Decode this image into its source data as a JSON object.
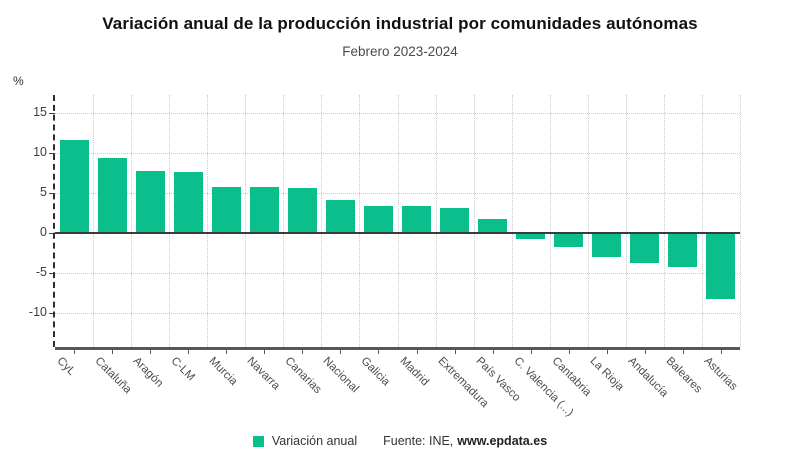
{
  "header": {
    "title": "Variación anual de la producción industrial por comunidades autónomas",
    "subtitle": "Febrero 2023-2024"
  },
  "chart_data": {
    "type": "bar",
    "title": "Variación anual de la producción industrial por comunidades autónomas",
    "subtitle": "Febrero 2023-2024",
    "y_unit": "%",
    "series_name": "Variación anual",
    "categories": [
      "CyL",
      "Cataluña",
      "Aragón",
      "C-LM",
      "Murcia",
      "Navarra",
      "Canarias",
      "Nacional",
      "Galicia",
      "Madrid",
      "Extremadura",
      "País Vasco",
      "C. Valencia (...)",
      "Cantabria",
      "La Rioja",
      "Andalucía",
      "Baleares",
      "Asturias"
    ],
    "values": [
      11.6,
      9.4,
      7.8,
      7.6,
      5.7,
      5.7,
      5.6,
      4.1,
      3.4,
      3.4,
      3.1,
      1.7,
      -0.8,
      -1.8,
      -3.0,
      -3.8,
      -4.3,
      -8.2
    ],
    "yticks": [
      15,
      10,
      5,
      0,
      -5,
      -10
    ],
    "ylim": [
      -14.25,
      17.25
    ],
    "grid": true,
    "legend_position": "bottom",
    "bar_color": "#0bbf8c"
  },
  "legend": {
    "series_label": "Variación anual"
  },
  "footer": {
    "source_prefix": "Fuente: INE,",
    "source_site": "www.epdata.es"
  }
}
